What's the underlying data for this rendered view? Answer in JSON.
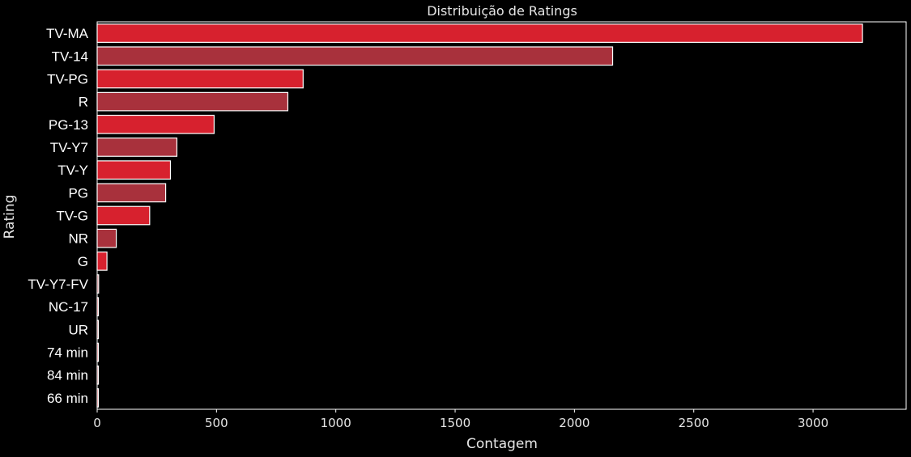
{
  "chart_data": {
    "type": "bar",
    "orientation": "horizontal",
    "title": "Distribuição de Ratings",
    "xlabel": "Contagem",
    "ylabel": "Rating",
    "categories": [
      "TV-MA",
      "TV-14",
      "TV-PG",
      "R",
      "PG-13",
      "TV-Y7",
      "TV-Y",
      "PG",
      "TV-G",
      "NR",
      "G",
      "TV-Y7-FV",
      "NC-17",
      "UR",
      "74 min",
      "84 min",
      "66 min"
    ],
    "values": [
      3207,
      2160,
      863,
      799,
      490,
      334,
      307,
      287,
      220,
      80,
      41,
      6,
      3,
      3,
      1,
      1,
      1
    ],
    "xlim": [
      0,
      3390
    ],
    "xticks": [
      0,
      500,
      1000,
      1500,
      2000,
      2500,
      3000
    ],
    "grid": false,
    "colors": [
      "#d7212e",
      "#a8313c"
    ]
  }
}
